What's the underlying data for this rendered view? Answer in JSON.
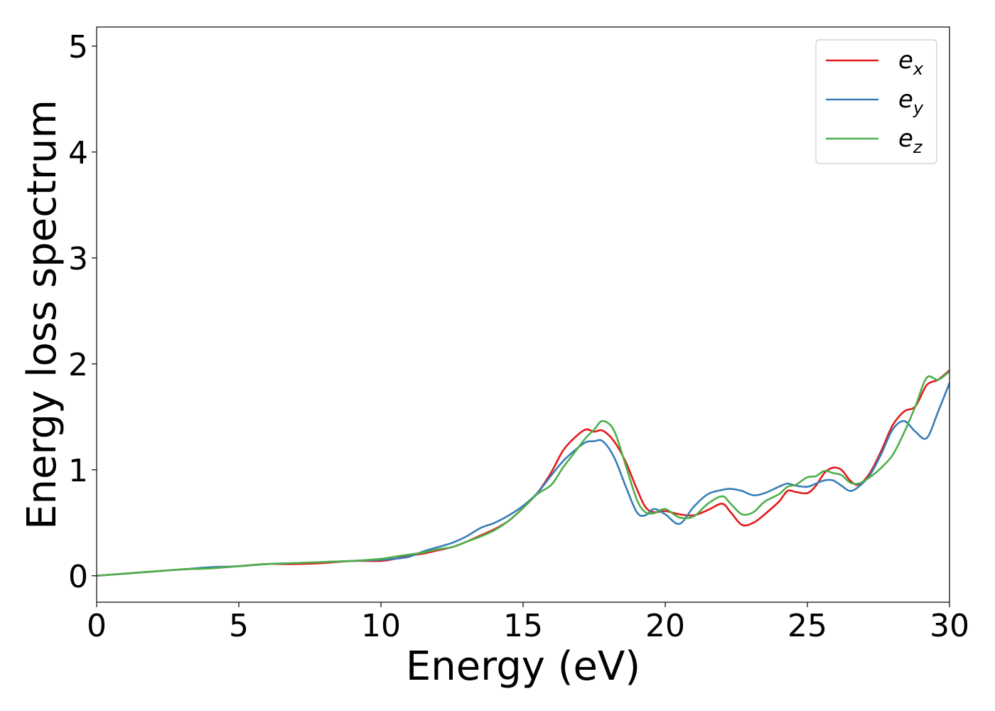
{
  "chart_data": {
    "type": "line",
    "title": "",
    "xlabel": "Energy (eV)",
    "ylabel": "Energy loss spectrum",
    "xlim": [
      0,
      30
    ],
    "ylim": [
      -0.25,
      5.18
    ],
    "xticks": [
      0,
      5,
      10,
      15,
      20,
      25,
      30
    ],
    "yticks": [
      0,
      1,
      2,
      3,
      4,
      5
    ],
    "grid": false,
    "legend_position": "top-right",
    "series": [
      {
        "name": "e",
        "subscript": "x",
        "color": "#e41a1c",
        "x": [
          0,
          1,
          2,
          3,
          4,
          5,
          6,
          7,
          8,
          9,
          10,
          10.5,
          11,
          11.5,
          12,
          12.5,
          13,
          13.5,
          14,
          14.5,
          15,
          15.5,
          16,
          16.4,
          16.8,
          17.2,
          17.5,
          17.8,
          18.2,
          18.6,
          19,
          19.3,
          19.6,
          20,
          20.5,
          21,
          21.5,
          22,
          22.3,
          22.7,
          23.1,
          23.5,
          24,
          24.3,
          24.6,
          25,
          25.3,
          25.6,
          25.9,
          26.2,
          26.5,
          26.8,
          27.2,
          27.6,
          28,
          28.4,
          28.8,
          29.2,
          29.6,
          30
        ],
        "y": [
          0,
          0.02,
          0.04,
          0.06,
          0.07,
          0.09,
          0.11,
          0.11,
          0.12,
          0.14,
          0.14,
          0.16,
          0.19,
          0.21,
          0.24,
          0.27,
          0.32,
          0.38,
          0.44,
          0.52,
          0.64,
          0.78,
          0.98,
          1.18,
          1.3,
          1.38,
          1.36,
          1.37,
          1.27,
          1.08,
          0.82,
          0.65,
          0.6,
          0.61,
          0.58,
          0.57,
          0.62,
          0.68,
          0.6,
          0.48,
          0.5,
          0.58,
          0.7,
          0.8,
          0.79,
          0.78,
          0.85,
          0.97,
          1.02,
          1.0,
          0.9,
          0.86,
          0.97,
          1.18,
          1.42,
          1.55,
          1.6,
          1.8,
          1.85,
          1.94
        ]
      },
      {
        "name": "e",
        "subscript": "y",
        "color": "#377eb8",
        "x": [
          0,
          1,
          2,
          3,
          4,
          5,
          6,
          7,
          8,
          9,
          10,
          10.5,
          11,
          11.5,
          12,
          12.5,
          13,
          13.5,
          14,
          14.5,
          15,
          15.5,
          16,
          16.4,
          16.8,
          17.2,
          17.5,
          17.8,
          18.2,
          18.6,
          19,
          19.3,
          19.6,
          20,
          20.5,
          21,
          21.5,
          22,
          22.3,
          22.7,
          23.1,
          23.5,
          24,
          24.3,
          24.6,
          25,
          25.3,
          25.6,
          25.9,
          26.2,
          26.5,
          26.8,
          27.2,
          27.6,
          28,
          28.4,
          28.8,
          29.2,
          29.6,
          30
        ],
        "y": [
          0,
          0.02,
          0.04,
          0.06,
          0.08,
          0.09,
          0.11,
          0.12,
          0.13,
          0.14,
          0.15,
          0.16,
          0.18,
          0.23,
          0.27,
          0.31,
          0.37,
          0.45,
          0.5,
          0.57,
          0.66,
          0.78,
          0.95,
          1.08,
          1.18,
          1.26,
          1.27,
          1.27,
          1.12,
          0.85,
          0.6,
          0.57,
          0.63,
          0.58,
          0.49,
          0.65,
          0.77,
          0.81,
          0.82,
          0.8,
          0.76,
          0.78,
          0.84,
          0.87,
          0.85,
          0.84,
          0.87,
          0.9,
          0.9,
          0.85,
          0.8,
          0.84,
          0.95,
          1.15,
          1.38,
          1.46,
          1.36,
          1.3,
          1.55,
          1.82
        ]
      },
      {
        "name": "e",
        "subscript": "z",
        "color": "#4daf4a",
        "x": [
          0,
          1,
          2,
          3,
          4,
          5,
          6,
          7,
          8,
          9,
          10,
          10.5,
          11,
          11.5,
          12,
          12.5,
          13,
          13.5,
          14,
          14.5,
          15,
          15.5,
          16,
          16.4,
          16.8,
          17.2,
          17.5,
          17.8,
          18.2,
          18.6,
          19,
          19.3,
          19.6,
          20,
          20.5,
          21,
          21.5,
          22,
          22.3,
          22.7,
          23.1,
          23.5,
          24,
          24.3,
          24.6,
          25,
          25.3,
          25.6,
          25.9,
          26.2,
          26.5,
          26.8,
          27.2,
          27.6,
          28,
          28.4,
          28.8,
          29.2,
          29.6,
          30
        ],
        "y": [
          0,
          0.02,
          0.04,
          0.06,
          0.07,
          0.09,
          0.11,
          0.12,
          0.13,
          0.14,
          0.16,
          0.18,
          0.2,
          0.22,
          0.25,
          0.27,
          0.32,
          0.37,
          0.43,
          0.52,
          0.64,
          0.77,
          0.86,
          1.02,
          1.16,
          1.3,
          1.38,
          1.46,
          1.37,
          1.05,
          0.72,
          0.6,
          0.59,
          0.63,
          0.55,
          0.56,
          0.68,
          0.75,
          0.68,
          0.58,
          0.6,
          0.7,
          0.77,
          0.84,
          0.86,
          0.93,
          0.94,
          0.99,
          0.97,
          0.95,
          0.88,
          0.87,
          0.93,
          1.02,
          1.14,
          1.35,
          1.6,
          1.87,
          1.85,
          1.93
        ]
      }
    ]
  }
}
